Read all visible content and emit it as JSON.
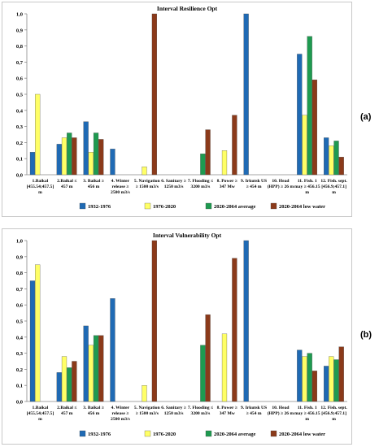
{
  "panel_labels": {
    "a": "(a)",
    "b": "(b)"
  },
  "chart_data": [
    {
      "type": "bar",
      "title": "Interval Resilience Opt",
      "ylim": [
        0,
        1.0
      ],
      "yticks": [
        "0,0",
        "0,1",
        "0,2",
        "0,3",
        "0,4",
        "0,5",
        "0,6",
        "0,7",
        "0,8",
        "0,9",
        "1,0"
      ],
      "categories": [
        [
          "1.Baikal",
          "[455.54;457.5]",
          "m"
        ],
        [
          "2.Baikal ≤",
          "457 m"
        ],
        [
          "3. Baikal ≥",
          "456 m"
        ],
        [
          "4. Winter",
          "release ≥",
          "2500 m3/s"
        ],
        [
          "5. Navigation",
          "≥ 1500 m3/s"
        ],
        [
          "6. Sanitary ≥",
          "1250 m3/s"
        ],
        [
          "7. Flooding ≤",
          "3200 m3/s"
        ],
        [
          "8. Power ≥",
          "347 Mw"
        ],
        [
          "9. Irkutsk US",
          "≥ 454 m"
        ],
        [
          "10. Head",
          "(HPP) ≥ 26 m"
        ],
        [
          "11. Fish. 1",
          "may ≥ 456.15",
          "m"
        ],
        [
          "12. Fish. sept.",
          "[456.9;457.1]",
          "m"
        ]
      ],
      "series": [
        {
          "name": "1932-1976",
          "color": "#1f6ab4",
          "values": [
            0.14,
            0.19,
            0.33,
            0.16,
            0,
            0,
            0,
            0,
            1.0,
            0,
            0.75,
            0.23
          ]
        },
        {
          "name": "1976-2020",
          "color": "#ffff66",
          "values": [
            0.5,
            0.23,
            0.14,
            0,
            0.05,
            0,
            0,
            0.15,
            0,
            0,
            0.37,
            0.18
          ]
        },
        {
          "name": "2020-2064  average",
          "color": "#1e9a50",
          "values": [
            0,
            0.26,
            0.26,
            0,
            0,
            0,
            0.13,
            0,
            0,
            0,
            0.86,
            0.21
          ]
        },
        {
          "name": "2020-2064  low water",
          "color": "#8b3a1a",
          "values": [
            0,
            0.23,
            0.22,
            0,
            1.0,
            0,
            0.28,
            0.37,
            0,
            0,
            0.59,
            0.11
          ]
        }
      ],
      "grid": false,
      "legend": "bottom"
    },
    {
      "type": "bar",
      "title": "Interval Vulnerability Opt",
      "ylim": [
        0,
        1.0
      ],
      "yticks": [
        "0,0",
        "0,1",
        "0,2",
        "0,3",
        "0,4",
        "0,5",
        "0,6",
        "0,7",
        "0,8",
        "0,9",
        "1,0"
      ],
      "categories": [
        [
          "1.Baikal",
          "[455.54;457.5]",
          "m"
        ],
        [
          "2.Baikal ≤",
          "457 m"
        ],
        [
          "3. Baikal ≥",
          "456 m"
        ],
        [
          "4. Winter",
          "release ≥",
          "2500 m3/s"
        ],
        [
          "5. Navigation",
          "≥ 1500 m3/s"
        ],
        [
          "6. Sanitary ≥",
          "1250 m3/s"
        ],
        [
          "7. Flooding ≤",
          "3200 m3/s"
        ],
        [
          "8. Power ≥",
          "347 Mw"
        ],
        [
          "9. Irkutsk US",
          "≥ 454 m"
        ],
        [
          "10. Head",
          "(HPP) ≥ 26 m"
        ],
        [
          "11. Fish. 1",
          "may ≥ 456.15",
          "m"
        ],
        [
          "12. Fish. sept.",
          "[456.9;457.1]",
          "m"
        ]
      ],
      "series": [
        {
          "name": "1932-1976",
          "color": "#1f6ab4",
          "values": [
            0.75,
            0.18,
            0.47,
            0.64,
            0,
            0,
            0,
            0,
            1.0,
            0,
            0.32,
            0.22
          ]
        },
        {
          "name": "1976-2020",
          "color": "#ffff66",
          "values": [
            0.85,
            0.28,
            0.35,
            0,
            0.1,
            0,
            0,
            0.42,
            0,
            0,
            0.28,
            0.28
          ]
        },
        {
          "name": "2020-2064  average",
          "color": "#1e9a50",
          "values": [
            0,
            0.21,
            0.41,
            0,
            0,
            0,
            0.35,
            0,
            0,
            0,
            0.3,
            0.26
          ]
        },
        {
          "name": "2020-2064  low water",
          "color": "#8b3a1a",
          "values": [
            0,
            0.25,
            0.41,
            0,
            1.0,
            0,
            0.54,
            0.89,
            0,
            0,
            0.19,
            0.34
          ]
        }
      ],
      "grid": false,
      "legend": "bottom"
    }
  ]
}
